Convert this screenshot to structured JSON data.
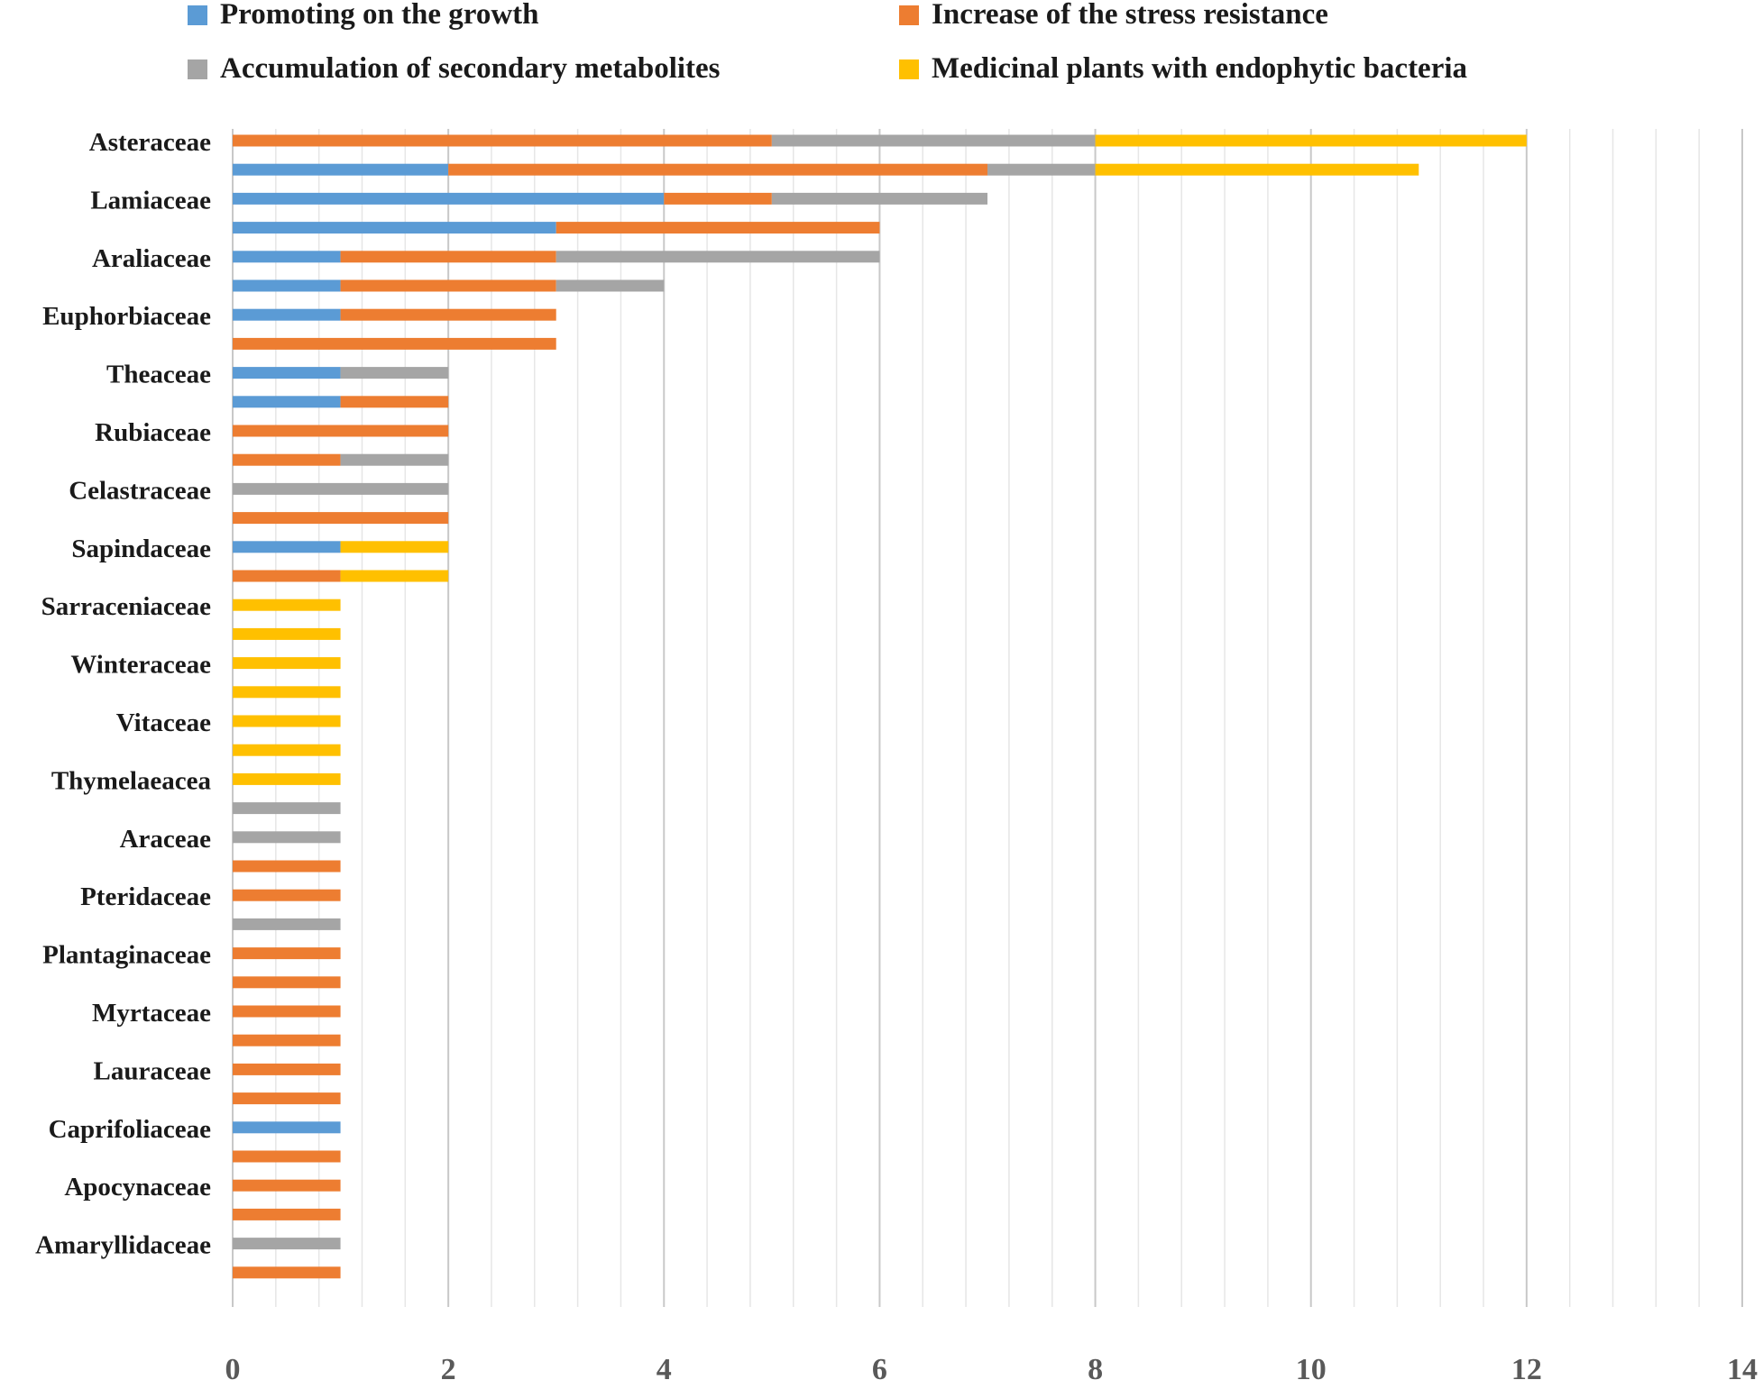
{
  "chart_data": {
    "type": "bar",
    "orientation": "horizontal",
    "stacked": true,
    "title": "",
    "xlabel": "",
    "ylabel": "",
    "xlim": [
      0,
      14
    ],
    "x_ticks": [
      "0",
      "2",
      "4",
      "6",
      "8",
      "10",
      "12",
      "14"
    ],
    "grid": "vertical",
    "legend_position": "top",
    "colors": [
      "#5b9bd5",
      "#ed7d31",
      "#a5a5a5",
      "#ffc000"
    ],
    "series": [
      {
        "name": "Promoting on the growth",
        "color": "#5b9bd5"
      },
      {
        "name": "Increase of the stress resistance",
        "color": "#ed7d31"
      },
      {
        "name": "Accumulation of secondary metabolites",
        "color": "#a5a5a5"
      },
      {
        "name": "Medicinal plants with endophytic bacteria",
        "color": "#ffc000"
      }
    ],
    "rows": [
      {
        "label": "Asteraceae",
        "values": [
          0,
          5,
          3,
          4
        ]
      },
      {
        "label": "",
        "values": [
          2,
          5,
          1,
          3
        ]
      },
      {
        "label": "Lamiaceae",
        "values": [
          4,
          1,
          2,
          0
        ]
      },
      {
        "label": "",
        "values": [
          3,
          3,
          0,
          0
        ]
      },
      {
        "label": "Araliaceae",
        "values": [
          1,
          2,
          3,
          0
        ]
      },
      {
        "label": "",
        "values": [
          1,
          2,
          1,
          0
        ]
      },
      {
        "label": "Euphorbiaceae",
        "values": [
          1,
          2,
          0,
          0
        ]
      },
      {
        "label": "",
        "values": [
          0,
          3,
          0,
          0
        ]
      },
      {
        "label": "Theaceae",
        "values": [
          1,
          0,
          1,
          0
        ]
      },
      {
        "label": "",
        "values": [
          1,
          1,
          0,
          0
        ]
      },
      {
        "label": "Rubiaceae",
        "values": [
          0,
          2,
          0,
          0
        ]
      },
      {
        "label": "",
        "values": [
          0,
          1,
          1,
          0
        ]
      },
      {
        "label": "Celastraceae",
        "values": [
          0,
          0,
          2,
          0
        ]
      },
      {
        "label": "",
        "values": [
          0,
          2,
          0,
          0
        ]
      },
      {
        "label": "Sapindaceae",
        "values": [
          1,
          0,
          0,
          1
        ]
      },
      {
        "label": "",
        "values": [
          0,
          1,
          0,
          1
        ]
      },
      {
        "label": "Sarraceniaceae",
        "values": [
          0,
          0,
          0,
          1
        ]
      },
      {
        "label": "",
        "values": [
          0,
          0,
          0,
          1
        ]
      },
      {
        "label": "Winteraceae",
        "values": [
          0,
          0,
          0,
          1
        ]
      },
      {
        "label": "",
        "values": [
          0,
          0,
          0,
          1
        ]
      },
      {
        "label": "Vitaceae",
        "values": [
          0,
          0,
          0,
          1
        ]
      },
      {
        "label": "",
        "values": [
          0,
          0,
          0,
          1
        ]
      },
      {
        "label": "Thymelaeacea",
        "values": [
          0,
          0,
          0,
          1
        ]
      },
      {
        "label": "",
        "values": [
          0,
          0,
          1,
          0
        ]
      },
      {
        "label": "Araceae",
        "values": [
          0,
          0,
          1,
          0
        ]
      },
      {
        "label": "",
        "values": [
          0,
          1,
          0,
          0
        ]
      },
      {
        "label": "Pteridaceae",
        "values": [
          0,
          1,
          0,
          0
        ]
      },
      {
        "label": "",
        "values": [
          0,
          0,
          1,
          0
        ]
      },
      {
        "label": "Plantaginaceae",
        "values": [
          0,
          1,
          0,
          0
        ]
      },
      {
        "label": "",
        "values": [
          0,
          1,
          0,
          0
        ]
      },
      {
        "label": "Myrtaceae",
        "values": [
          0,
          1,
          0,
          0
        ]
      },
      {
        "label": "",
        "values": [
          0,
          1,
          0,
          0
        ]
      },
      {
        "label": "Lauraceae",
        "values": [
          0,
          1,
          0,
          0
        ]
      },
      {
        "label": "",
        "values": [
          0,
          1,
          0,
          0
        ]
      },
      {
        "label": "Caprifoliaceae",
        "values": [
          1,
          0,
          0,
          0
        ]
      },
      {
        "label": "",
        "values": [
          0,
          1,
          0,
          0
        ]
      },
      {
        "label": "Apocynaceae",
        "values": [
          0,
          1,
          0,
          0
        ]
      },
      {
        "label": "",
        "values": [
          0,
          1,
          0,
          0
        ]
      },
      {
        "label": "Amaryllidaceae",
        "values": [
          0,
          0,
          1,
          0
        ]
      },
      {
        "label": "",
        "values": [
          0,
          1,
          0,
          0
        ]
      }
    ]
  }
}
